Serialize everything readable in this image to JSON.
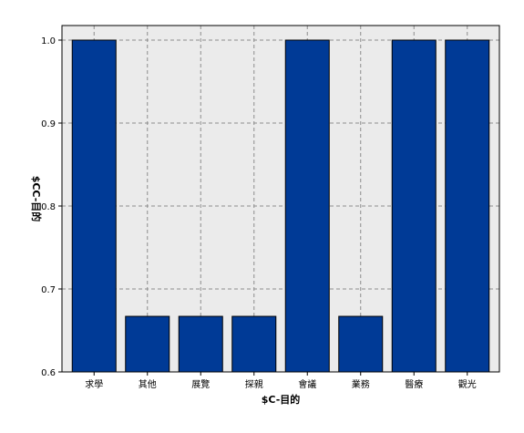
{
  "chart_data": {
    "type": "bar",
    "xlabel": "$C-目的",
    "ylabel": "$CC-目的",
    "categories": [
      "求學",
      "其他",
      "展覽",
      "探親",
      "會議",
      "業務",
      "醫療",
      "觀光"
    ],
    "values": [
      1.0,
      0.667,
      0.667,
      0.667,
      1.0,
      0.667,
      1.0,
      1.0
    ],
    "ylim": [
      0.6,
      1.0
    ],
    "yticks": [
      "0.6",
      "0.7",
      "0.8",
      "0.9",
      "1.0"
    ],
    "grid": true,
    "colors": {
      "bar": "#003a96",
      "bar_edge": "#000000",
      "plot_background": "#ebebeb",
      "grid": "#8c8c8c"
    }
  }
}
